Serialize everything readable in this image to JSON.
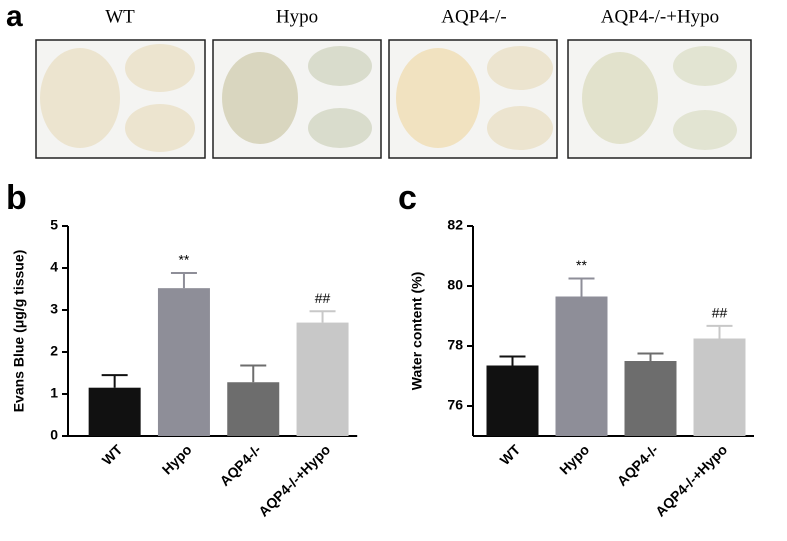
{
  "panel_a": {
    "panel_label": "a",
    "conditions": [
      "WT",
      "Hypo",
      "AQP4-/-",
      "AQP4-/-+Hypo"
    ]
  },
  "chart_data": [
    {
      "type": "bar",
      "panel_label": "b",
      "ylabel": "Evans Blue (μg/g tissue)",
      "categories": [
        "WT",
        "Hypo",
        "AQP4-/-",
        "AQP4-/-+Hypo"
      ],
      "values": [
        1.15,
        3.52,
        1.28,
        2.7
      ],
      "errors": [
        0.3,
        0.36,
        0.4,
        0.27
      ],
      "annotations": [
        null,
        "**",
        null,
        "##"
      ],
      "colors": [
        "#111111",
        "#8e8e98",
        "#6d6d6d",
        "#c8c8c8"
      ],
      "ylim": [
        0,
        5
      ],
      "yticks": [
        0,
        1,
        2,
        3,
        4,
        5
      ]
    },
    {
      "type": "bar",
      "panel_label": "c",
      "ylabel": "Water content (%)",
      "categories": [
        "WT",
        "Hypo",
        "AQP4-/-",
        "AQP4-/-+Hypo"
      ],
      "values": [
        77.35,
        79.65,
        77.5,
        78.25
      ],
      "errors": [
        0.3,
        0.6,
        0.25,
        0.42
      ],
      "annotations": [
        null,
        "**",
        null,
        "##"
      ],
      "colors": [
        "#111111",
        "#8e8e98",
        "#6d6d6d",
        "#c8c8c8"
      ],
      "ylim": [
        75,
        82
      ],
      "yticks": [
        76,
        78,
        80,
        82
      ]
    }
  ]
}
